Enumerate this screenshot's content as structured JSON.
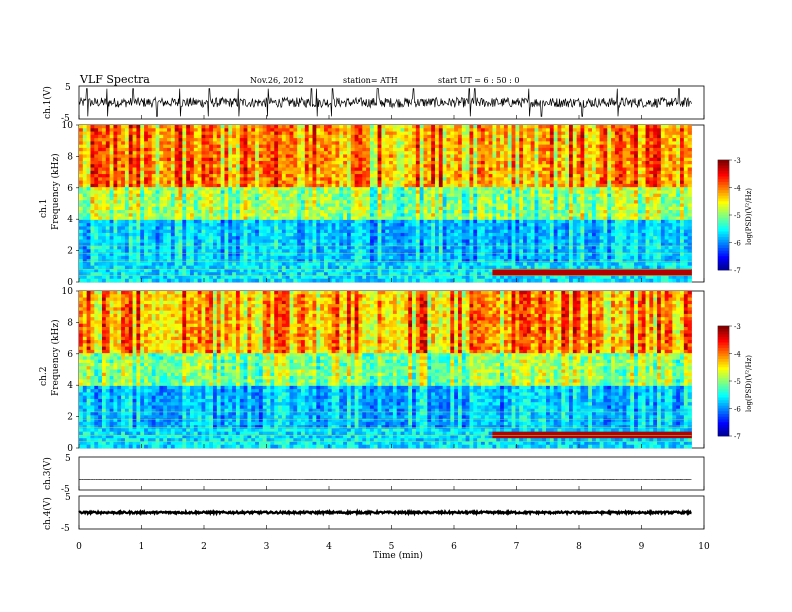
{
  "header": {
    "title": "VLF  Spectra",
    "date": "Nov.26, 2012",
    "station": "station= ATH",
    "start": "start  UT =   6  : 50 : 0"
  },
  "chart_data": [
    {
      "type": "line",
      "panel": "ch1-waveform",
      "ylabel": "ch.1(V)",
      "ylim": [
        -5,
        5
      ],
      "yticks": [
        "5",
        "-5"
      ],
      "xlim": [
        0,
        10
      ],
      "data_extent_min": 9.8,
      "baseline": 0,
      "noise_amplitude": 1.5,
      "spikes": [
        0.13,
        0.45,
        0.87,
        1.25,
        1.62,
        2.08,
        2.55,
        3.02,
        3.72,
        3.81,
        4.05,
        4.78,
        5.35,
        6.25,
        6.33,
        7.2,
        7.4,
        8.05,
        8.62,
        9.6
      ]
    },
    {
      "type": "heatmap",
      "panel": "ch1-spectrogram",
      "ylabel": "ch.1\nFrequency (kHz)",
      "ylabel_ch": "ch.1",
      "ylabel_freq": "Frequency (kHz)",
      "ylim": [
        0,
        10
      ],
      "yticks": [
        "0",
        "2",
        "4",
        "6",
        "8",
        "10"
      ],
      "xlim": [
        0,
        10
      ],
      "colorbar": {
        "label": "log(PSD)(V²/Hz)",
        "range": [
          -7,
          -3
        ],
        "ticks": [
          "-3",
          "-4",
          "-5",
          "-6",
          "-7"
        ]
      },
      "strong_band_khz": 0.6,
      "strong_band_start_min": 6.6
    },
    {
      "type": "heatmap",
      "panel": "ch2-spectrogram",
      "ylabel": "ch.2\nFrequency (kHz)",
      "ylabel_ch": "ch.2",
      "ylabel_freq": "Frequency (kHz)",
      "ylim": [
        0,
        10
      ],
      "yticks": [
        "0",
        "2",
        "4",
        "6",
        "8",
        "10"
      ],
      "xlim": [
        0,
        10
      ],
      "colorbar": {
        "label": "log(PSD)(V²/Hz)",
        "range": [
          -7,
          -3
        ],
        "ticks": [
          "-3",
          "-4",
          "-5",
          "-6",
          "-7"
        ]
      },
      "strong_band_khz": 0.8,
      "strong_band_start_min": 6.6
    },
    {
      "type": "line",
      "panel": "ch3-waveform",
      "ylabel": "ch.3(V)",
      "ylim": [
        -5,
        5
      ],
      "yticks": [
        "5",
        "-5"
      ],
      "xlim": [
        0,
        10
      ],
      "baseline": -1.8,
      "noise_amplitude": 0.05
    },
    {
      "type": "line",
      "panel": "ch4-waveform",
      "ylabel": "ch.4(V)",
      "ylim": [
        -5,
        5
      ],
      "yticks": [
        "5",
        "-5"
      ],
      "xlim": [
        0,
        10
      ],
      "baseline": 0,
      "noise_amplitude": 0.3
    }
  ],
  "xaxis": {
    "label": "Time  (min)",
    "ticks": [
      "0",
      "1",
      "2",
      "3",
      "4",
      "5",
      "6",
      "7",
      "8",
      "9",
      "10"
    ]
  }
}
